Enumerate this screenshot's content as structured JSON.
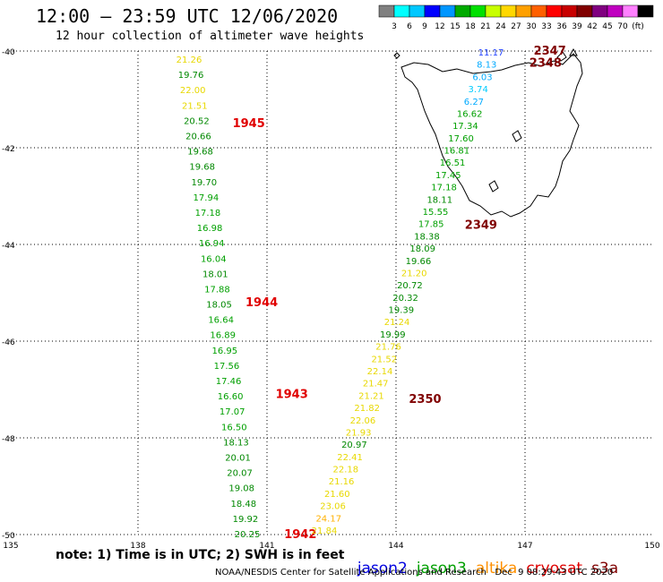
{
  "header": {
    "title": "12:00 – 23:59 UTC 12/06/2020",
    "subtitle": "12 hour collection of altimeter wave heights"
  },
  "colorbar": {
    "colors": [
      "#808080",
      "#00ffff",
      "#00c8ff",
      "#0000ff",
      "#0096ff",
      "#00aa00",
      "#00e000",
      "#c8ff00",
      "#ffd800",
      "#ffa000",
      "#ff6000",
      "#ff0000",
      "#c80000",
      "#800000",
      "#800080",
      "#c000c0",
      "#ff80ff",
      "#000000"
    ],
    "labels": [
      "3",
      "6",
      "9",
      "12",
      "15",
      "18",
      "21",
      "24",
      "27",
      "30",
      "33",
      "36",
      "39",
      "42",
      "45",
      "70",
      "(ft)"
    ]
  },
  "axes": {
    "lat_labels": [
      "-40",
      "-42",
      "-44",
      "-46",
      "-48",
      "-50"
    ],
    "lon_labels": [
      "135",
      "138",
      "141",
      "144",
      "147",
      "150"
    ]
  },
  "chart_data": {
    "type": "scatter",
    "title": "12:00 – 23:59 UTC 12/06/2020",
    "xlabel": "",
    "ylabel": "",
    "xlim": [
      135,
      150
    ],
    "ylim": [
      -50,
      -40
    ],
    "grid": true,
    "track_west": {
      "values": [
        "21.26",
        "19.76",
        "22.00",
        "21.51",
        "20.52",
        "20.66",
        "19.68",
        "19.68",
        "19.70",
        "17.94",
        "17.18",
        "16.98",
        "16.94",
        "16.04",
        "18.01",
        "17.88",
        "18.05",
        "16.64",
        "16.89",
        "16.95",
        "17.56",
        "17.46",
        "16.60",
        "17.07",
        "16.50",
        "18.13",
        "20.01",
        "20.07",
        "19.08",
        "18.48",
        "19.92",
        "20.25"
      ],
      "time_labels": [
        {
          "text": "1945",
          "lon": 140.2,
          "lat": -41.5
        },
        {
          "text": "1944",
          "lon": 140.5,
          "lat": -45.2
        },
        {
          "text": "1943",
          "lon": 141.2,
          "lat": -47.1
        },
        {
          "text": "1942",
          "lon": 141.4,
          "lat": -50.0
        }
      ]
    },
    "track_east": {
      "values": [
        "11.17",
        "8.13",
        "6.03",
        "3.74",
        "6.27",
        "16.62",
        "17.34",
        "17.60",
        "16.81",
        "16.51",
        "17.45",
        "17.18",
        "18.11",
        "15.55",
        "17.85",
        "18.38",
        "18.09",
        "19.66",
        "21.20",
        "20.72",
        "20.32",
        "19.39",
        "21.24",
        "19.99",
        "21.76",
        "21.52",
        "22.14",
        "21.47",
        "21.21",
        "21.82",
        "22.06",
        "21.93",
        "20.97",
        "22.41",
        "22.18",
        "21.16",
        "21.60",
        "23.06",
        "24.17",
        "21.84"
      ],
      "time_labels": [
        {
          "text": "2347",
          "lon": 147.2,
          "lat": -40.0
        },
        {
          "text": "2348",
          "lon": 147.1,
          "lat": -40.25
        },
        {
          "text": "2349",
          "lon": 145.6,
          "lat": -43.6
        },
        {
          "text": "2350",
          "lon": 144.3,
          "lat": -47.2
        }
      ]
    }
  },
  "footer": {
    "note": "note: 1) Time is in UTC; 2) SWH is in feet",
    "credit": "NOAA/NESDIS Center for Satellite Applications and Research   Dec  9 08:29:43 UTC 2020"
  },
  "legend": {
    "items": [
      {
        "label": "jason2",
        "color": "#0000e0"
      },
      {
        "label": "jason3",
        "color": "#00a000"
      },
      {
        "label": "altika",
        "color": "#ff9000"
      },
      {
        "label": "cryosat",
        "color": "#e00000"
      },
      {
        "label": "s3a",
        "color": "#800000"
      }
    ]
  }
}
